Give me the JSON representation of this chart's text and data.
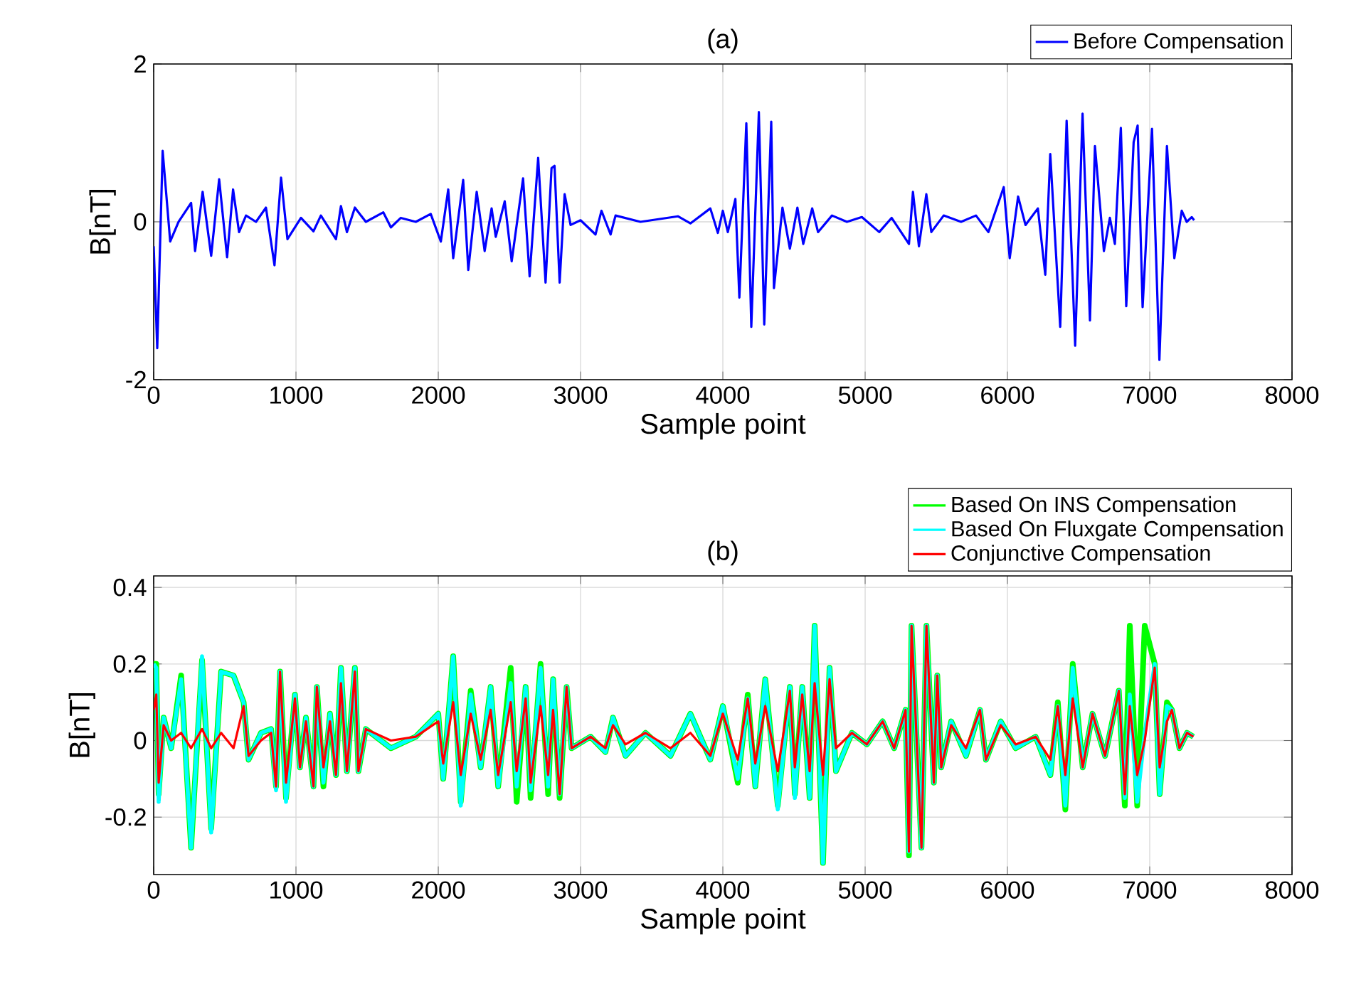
{
  "chart_data": [
    {
      "type": "line",
      "title": "(a)",
      "xlabel": "Sample point",
      "ylabel": "B[nT]",
      "xlim": [
        0,
        8000
      ],
      "ylim": [
        -2,
        2
      ],
      "xticks": [
        0,
        1000,
        2000,
        3000,
        4000,
        5000,
        6000,
        7000,
        8000
      ],
      "yticks": [
        -2,
        0,
        2
      ],
      "grid": true,
      "legend": "top right",
      "x": [
        0,
        25,
        63,
        116,
        175,
        263,
        291,
        344,
        404,
        460,
        516,
        558,
        600,
        649,
        719,
        789,
        849,
        895,
        940,
        1035,
        1123,
        1175,
        1281,
        1316,
        1358,
        1414,
        1491,
        1614,
        1667,
        1737,
        1842,
        1947,
        2018,
        2070,
        2105,
        2175,
        2211,
        2270,
        2326,
        2375,
        2404,
        2467,
        2516,
        2596,
        2642,
        2702,
        2754,
        2796,
        2817,
        2853,
        2888,
        2930,
        3000,
        3105,
        3147,
        3211,
        3246,
        3421,
        3684,
        3772,
        3912,
        3965,
        4000,
        4035,
        4088,
        4116,
        4165,
        4200,
        4253,
        4291,
        4340,
        4359,
        4419,
        4471,
        4524,
        4565,
        4628,
        4669,
        4767,
        4872,
        4977,
        5099,
        5186,
        5308,
        5336,
        5378,
        5430,
        5465,
        5552,
        5674,
        5779,
        5866,
        5974,
        6016,
        6075,
        6127,
        6214,
        6266,
        6301,
        6371,
        6416,
        6476,
        6528,
        6580,
        6615,
        6678,
        6720,
        6755,
        6797,
        6835,
        6887,
        6915,
        6950,
        7016,
        7068,
        7121,
        7173,
        7225,
        7260,
        7295,
        7312
      ],
      "series": [
        {
          "name": "Before Compensation",
          "color": "#0000ff",
          "values": [
            -0.31,
            -1.6,
            0.9,
            -0.25,
            0,
            0.24,
            -0.37,
            0.38,
            -0.43,
            0.54,
            -0.45,
            0.41,
            -0.13,
            0.08,
            0,
            0.18,
            -0.55,
            0.56,
            -0.22,
            0.05,
            -0.12,
            0.08,
            -0.22,
            0.2,
            -0.13,
            0.18,
            0,
            0.12,
            -0.07,
            0.05,
            0,
            0.1,
            -0.25,
            0.41,
            -0.46,
            0.53,
            -0.61,
            0.38,
            -0.37,
            0.17,
            -0.19,
            0.26,
            -0.5,
            0.55,
            -0.69,
            0.81,
            -0.77,
            0.68,
            0.71,
            -0.77,
            0.35,
            -0.04,
            0.02,
            -0.16,
            0.14,
            -0.16,
            0.08,
            0,
            0.07,
            -0.02,
            0.17,
            -0.14,
            0.14,
            -0.13,
            0.29,
            -0.96,
            1.25,
            -1.33,
            1.39,
            -1.3,
            1.27,
            -0.84,
            0.18,
            -0.34,
            0.18,
            -0.28,
            0.17,
            -0.13,
            0.08,
            0,
            0.06,
            -0.13,
            0.05,
            -0.28,
            0.38,
            -0.31,
            0.35,
            -0.13,
            0.08,
            0,
            0.08,
            -0.13,
            0.44,
            -0.46,
            0.32,
            -0.04,
            0.17,
            -0.67,
            0.86,
            -1.33,
            1.28,
            -1.57,
            1.37,
            -1.25,
            0.96,
            -0.37,
            0.05,
            -0.28,
            1.19,
            -1.07,
            1.01,
            1.22,
            -1.08,
            1.18,
            -1.75,
            0.96,
            -0.46,
            0.14,
            0,
            0.06,
            0.02
          ]
        }
      ]
    },
    {
      "type": "line",
      "title": "(b)",
      "xlabel": "Sample point",
      "ylabel": "B[nT]",
      "xlim": [
        0,
        8000
      ],
      "ylim": [
        -0.35,
        0.43
      ],
      "xticks": [
        0,
        1000,
        2000,
        3000,
        4000,
        5000,
        6000,
        7000,
        8000
      ],
      "yticks": [
        -0.2,
        0,
        0.2,
        0.4
      ],
      "grid": true,
      "legend": "top right",
      "x": [
        0,
        18,
        35,
        70,
        123,
        193,
        263,
        340,
        404,
        474,
        561,
        632,
        667,
        754,
        825,
        860,
        888,
        930,
        993,
        1028,
        1070,
        1123,
        1147,
        1193,
        1239,
        1281,
        1316,
        1358,
        1414,
        1439,
        1491,
        1667,
        1842,
        2000,
        2035,
        2105,
        2158,
        2228,
        2298,
        2368,
        2421,
        2509,
        2551,
        2614,
        2649,
        2719,
        2772,
        2807,
        2853,
        2902,
        2937,
        3070,
        3175,
        3228,
        3316,
        3456,
        3632,
        3772,
        3912,
        4000,
        4105,
        4175,
        4228,
        4298,
        4386,
        4471,
        4506,
        4558,
        4610,
        4645,
        4704,
        4750,
        4795,
        4907,
        5012,
        5123,
        5204,
        5284,
        5308,
        5326,
        5396,
        5431,
        5483,
        5507,
        5535,
        5605,
        5709,
        5807,
        5849,
        5953,
        6058,
        6198,
        6302,
        6354,
        6407,
        6459,
        6529,
        6598,
        6686,
        6783,
        6825,
        6860,
        6912,
        6965,
        7035,
        7070,
        7121,
        7156,
        7209,
        7262,
        7307
      ],
      "series": [
        {
          "name": "Based On INS Compensation",
          "color": "#00ff00",
          "values": [
            0.2,
            0.2,
            -0.14,
            0.06,
            -0.02,
            0.17,
            -0.28,
            0.21,
            -0.23,
            0.18,
            0.17,
            0.1,
            -0.05,
            0.02,
            0.03,
            -0.12,
            0.18,
            -0.15,
            0.12,
            -0.07,
            0.06,
            -0.12,
            0.14,
            -0.12,
            0.07,
            -0.09,
            0.19,
            -0.08,
            0.19,
            -0.08,
            0.03,
            -0.02,
            0.01,
            0.07,
            -0.1,
            0.22,
            -0.16,
            0.13,
            -0.07,
            0.14,
            -0.12,
            0.19,
            -0.16,
            0.14,
            -0.15,
            0.2,
            -0.14,
            0.16,
            -0.15,
            0.14,
            -0.02,
            0.01,
            -0.03,
            0.06,
            -0.04,
            0.02,
            -0.04,
            0.07,
            -0.05,
            0.09,
            -0.11,
            0.12,
            -0.12,
            0.16,
            -0.17,
            0.14,
            -0.14,
            0.14,
            -0.15,
            0.3,
            -0.32,
            0.19,
            -0.08,
            0.02,
            -0.01,
            0.05,
            -0.02,
            0.08,
            -0.3,
            0.3,
            -0.28,
            0.3,
            -0.11,
            0.17,
            -0.07,
            0.05,
            -0.04,
            0.08,
            -0.05,
            0.05,
            -0.02,
            0.01,
            -0.09,
            0.1,
            -0.18,
            0.2,
            -0.07,
            0.07,
            -0.04,
            0.13,
            -0.17,
            0.3,
            -0.17,
            0.3,
            0.2,
            -0.14,
            0.1,
            0.08,
            -0.02,
            0.02,
            0.01
          ]
        },
        {
          "name": "Based On Fluxgate Compensation",
          "color": "#00ffff",
          "values": [
            0.2,
            0.19,
            -0.16,
            0.06,
            -0.02,
            0.16,
            -0.28,
            0.22,
            -0.24,
            0.18,
            0.17,
            0.1,
            -0.05,
            0.02,
            0.03,
            -0.13,
            0.18,
            -0.16,
            0.12,
            -0.07,
            0.06,
            -0.12,
            0.14,
            -0.11,
            0.07,
            -0.09,
            0.19,
            -0.08,
            0.19,
            -0.08,
            0.03,
            -0.02,
            0.01,
            0.07,
            -0.1,
            0.22,
            -0.17,
            0.12,
            -0.07,
            0.14,
            -0.12,
            0.15,
            -0.12,
            0.14,
            -0.13,
            0.19,
            -0.12,
            0.16,
            -0.14,
            0.14,
            -0.02,
            0.01,
            -0.03,
            0.06,
            -0.04,
            0.02,
            -0.04,
            0.07,
            -0.05,
            0.09,
            -0.1,
            0.11,
            -0.12,
            0.16,
            -0.18,
            0.14,
            -0.15,
            0.14,
            -0.15,
            0.3,
            -0.32,
            0.19,
            -0.08,
            0.02,
            -0.01,
            0.05,
            -0.02,
            0.08,
            -0.29,
            0.3,
            -0.28,
            0.3,
            -0.11,
            0.17,
            -0.07,
            0.05,
            -0.04,
            0.08,
            -0.05,
            0.05,
            -0.02,
            0.01,
            -0.09,
            0.09,
            -0.17,
            0.19,
            -0.07,
            0.07,
            -0.04,
            0.13,
            -0.15,
            0.12,
            -0.16,
            0.02,
            0.2,
            -0.14,
            0.09,
            0.08,
            -0.02,
            0.02,
            0.01
          ]
        },
        {
          "name": "Conjunctive Compensation",
          "color": "#ff0000",
          "values": [
            0.08,
            0.12,
            -0.11,
            0.04,
            0,
            0.02,
            -0.02,
            0.03,
            -0.02,
            0.02,
            -0.02,
            0.09,
            -0.04,
            0,
            0.02,
            -0.12,
            0.18,
            -0.11,
            0.11,
            -0.07,
            0.05,
            -0.12,
            0.14,
            -0.07,
            0.05,
            -0.09,
            0.15,
            -0.08,
            0.18,
            -0.08,
            0.03,
            0,
            0.01,
            0.05,
            -0.06,
            0.1,
            -0.09,
            0.07,
            -0.05,
            0.08,
            -0.09,
            0.1,
            -0.08,
            0.11,
            -0.11,
            0.09,
            -0.09,
            0.08,
            -0.14,
            0.14,
            -0.02,
            0.01,
            -0.02,
            0.04,
            -0.01,
            0.02,
            -0.02,
            0.02,
            -0.04,
            0.07,
            -0.05,
            0.11,
            -0.06,
            0.09,
            -0.08,
            0.13,
            -0.07,
            0.12,
            -0.08,
            0.15,
            -0.09,
            0.16,
            -0.02,
            0.02,
            -0.01,
            0.05,
            -0.02,
            0.08,
            -0.29,
            0.3,
            -0.28,
            0.3,
            -0.11,
            0.17,
            -0.07,
            0.04,
            -0.02,
            0.08,
            -0.05,
            0.04,
            -0.01,
            0.01,
            -0.05,
            0.09,
            -0.09,
            0.11,
            -0.07,
            0.07,
            -0.04,
            0.13,
            -0.14,
            0.09,
            -0.09,
            0,
            0.19,
            -0.07,
            0.05,
            0.08,
            -0.02,
            0.02,
            0.01
          ]
        }
      ]
    }
  ]
}
